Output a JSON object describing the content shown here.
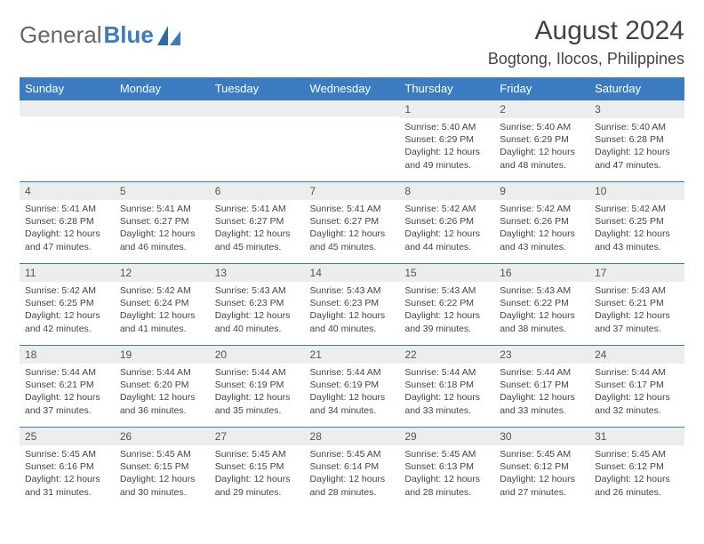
{
  "brand": {
    "part1": "General",
    "part2": "Blue"
  },
  "title": "August 2024",
  "location": "Bogtong, Ilocos, Philippines",
  "colors": {
    "header_bg": "#3a7cbf",
    "header_text": "#ffffff",
    "daynum_bg": "#eceded",
    "cell_border": "#3a7cbf",
    "body_text": "#444444",
    "page_bg": "#ffffff"
  },
  "typography": {
    "month_title_fontsize": 30,
    "location_fontsize": 18,
    "weekday_fontsize": 13,
    "daynum_fontsize": 12,
    "cell_fontsize": 10.5
  },
  "weekdays": [
    "Sunday",
    "Monday",
    "Tuesday",
    "Wednesday",
    "Thursday",
    "Friday",
    "Saturday"
  ],
  "weeks": [
    [
      {
        "day": "",
        "sunrise": "",
        "sunset": "",
        "daylight": ""
      },
      {
        "day": "",
        "sunrise": "",
        "sunset": "",
        "daylight": ""
      },
      {
        "day": "",
        "sunrise": "",
        "sunset": "",
        "daylight": ""
      },
      {
        "day": "",
        "sunrise": "",
        "sunset": "",
        "daylight": ""
      },
      {
        "day": "1",
        "sunrise": "Sunrise: 5:40 AM",
        "sunset": "Sunset: 6:29 PM",
        "daylight": "Daylight: 12 hours and 49 minutes."
      },
      {
        "day": "2",
        "sunrise": "Sunrise: 5:40 AM",
        "sunset": "Sunset: 6:29 PM",
        "daylight": "Daylight: 12 hours and 48 minutes."
      },
      {
        "day": "3",
        "sunrise": "Sunrise: 5:40 AM",
        "sunset": "Sunset: 6:28 PM",
        "daylight": "Daylight: 12 hours and 47 minutes."
      }
    ],
    [
      {
        "day": "4",
        "sunrise": "Sunrise: 5:41 AM",
        "sunset": "Sunset: 6:28 PM",
        "daylight": "Daylight: 12 hours and 47 minutes."
      },
      {
        "day": "5",
        "sunrise": "Sunrise: 5:41 AM",
        "sunset": "Sunset: 6:27 PM",
        "daylight": "Daylight: 12 hours and 46 minutes."
      },
      {
        "day": "6",
        "sunrise": "Sunrise: 5:41 AM",
        "sunset": "Sunset: 6:27 PM",
        "daylight": "Daylight: 12 hours and 45 minutes."
      },
      {
        "day": "7",
        "sunrise": "Sunrise: 5:41 AM",
        "sunset": "Sunset: 6:27 PM",
        "daylight": "Daylight: 12 hours and 45 minutes."
      },
      {
        "day": "8",
        "sunrise": "Sunrise: 5:42 AM",
        "sunset": "Sunset: 6:26 PM",
        "daylight": "Daylight: 12 hours and 44 minutes."
      },
      {
        "day": "9",
        "sunrise": "Sunrise: 5:42 AM",
        "sunset": "Sunset: 6:26 PM",
        "daylight": "Daylight: 12 hours and 43 minutes."
      },
      {
        "day": "10",
        "sunrise": "Sunrise: 5:42 AM",
        "sunset": "Sunset: 6:25 PM",
        "daylight": "Daylight: 12 hours and 43 minutes."
      }
    ],
    [
      {
        "day": "11",
        "sunrise": "Sunrise: 5:42 AM",
        "sunset": "Sunset: 6:25 PM",
        "daylight": "Daylight: 12 hours and 42 minutes."
      },
      {
        "day": "12",
        "sunrise": "Sunrise: 5:42 AM",
        "sunset": "Sunset: 6:24 PM",
        "daylight": "Daylight: 12 hours and 41 minutes."
      },
      {
        "day": "13",
        "sunrise": "Sunrise: 5:43 AM",
        "sunset": "Sunset: 6:23 PM",
        "daylight": "Daylight: 12 hours and 40 minutes."
      },
      {
        "day": "14",
        "sunrise": "Sunrise: 5:43 AM",
        "sunset": "Sunset: 6:23 PM",
        "daylight": "Daylight: 12 hours and 40 minutes."
      },
      {
        "day": "15",
        "sunrise": "Sunrise: 5:43 AM",
        "sunset": "Sunset: 6:22 PM",
        "daylight": "Daylight: 12 hours and 39 minutes."
      },
      {
        "day": "16",
        "sunrise": "Sunrise: 5:43 AM",
        "sunset": "Sunset: 6:22 PM",
        "daylight": "Daylight: 12 hours and 38 minutes."
      },
      {
        "day": "17",
        "sunrise": "Sunrise: 5:43 AM",
        "sunset": "Sunset: 6:21 PM",
        "daylight": "Daylight: 12 hours and 37 minutes."
      }
    ],
    [
      {
        "day": "18",
        "sunrise": "Sunrise: 5:44 AM",
        "sunset": "Sunset: 6:21 PM",
        "daylight": "Daylight: 12 hours and 37 minutes."
      },
      {
        "day": "19",
        "sunrise": "Sunrise: 5:44 AM",
        "sunset": "Sunset: 6:20 PM",
        "daylight": "Daylight: 12 hours and 36 minutes."
      },
      {
        "day": "20",
        "sunrise": "Sunrise: 5:44 AM",
        "sunset": "Sunset: 6:19 PM",
        "daylight": "Daylight: 12 hours and 35 minutes."
      },
      {
        "day": "21",
        "sunrise": "Sunrise: 5:44 AM",
        "sunset": "Sunset: 6:19 PM",
        "daylight": "Daylight: 12 hours and 34 minutes."
      },
      {
        "day": "22",
        "sunrise": "Sunrise: 5:44 AM",
        "sunset": "Sunset: 6:18 PM",
        "daylight": "Daylight: 12 hours and 33 minutes."
      },
      {
        "day": "23",
        "sunrise": "Sunrise: 5:44 AM",
        "sunset": "Sunset: 6:17 PM",
        "daylight": "Daylight: 12 hours and 33 minutes."
      },
      {
        "day": "24",
        "sunrise": "Sunrise: 5:44 AM",
        "sunset": "Sunset: 6:17 PM",
        "daylight": "Daylight: 12 hours and 32 minutes."
      }
    ],
    [
      {
        "day": "25",
        "sunrise": "Sunrise: 5:45 AM",
        "sunset": "Sunset: 6:16 PM",
        "daylight": "Daylight: 12 hours and 31 minutes."
      },
      {
        "day": "26",
        "sunrise": "Sunrise: 5:45 AM",
        "sunset": "Sunset: 6:15 PM",
        "daylight": "Daylight: 12 hours and 30 minutes."
      },
      {
        "day": "27",
        "sunrise": "Sunrise: 5:45 AM",
        "sunset": "Sunset: 6:15 PM",
        "daylight": "Daylight: 12 hours and 29 minutes."
      },
      {
        "day": "28",
        "sunrise": "Sunrise: 5:45 AM",
        "sunset": "Sunset: 6:14 PM",
        "daylight": "Daylight: 12 hours and 28 minutes."
      },
      {
        "day": "29",
        "sunrise": "Sunrise: 5:45 AM",
        "sunset": "Sunset: 6:13 PM",
        "daylight": "Daylight: 12 hours and 28 minutes."
      },
      {
        "day": "30",
        "sunrise": "Sunrise: 5:45 AM",
        "sunset": "Sunset: 6:12 PM",
        "daylight": "Daylight: 12 hours and 27 minutes."
      },
      {
        "day": "31",
        "sunrise": "Sunrise: 5:45 AM",
        "sunset": "Sunset: 6:12 PM",
        "daylight": "Daylight: 12 hours and 26 minutes."
      }
    ]
  ]
}
